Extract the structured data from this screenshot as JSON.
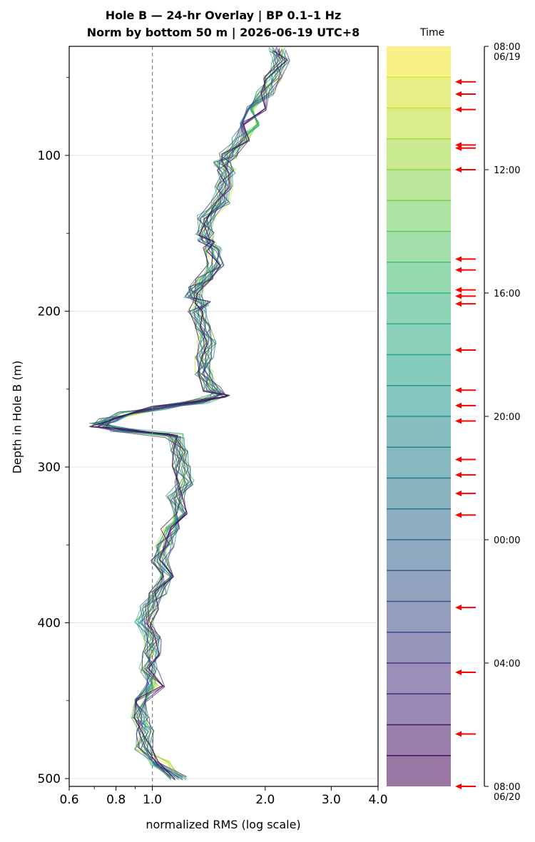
{
  "chart_data": {
    "type": "line",
    "title": "Hole B — 24-hr Overlay  |  BP 0.1–1 Hz",
    "subtitle": "Norm by bottom 50 m  |  2026-06-19 UTC+8",
    "xlabel": "normalized RMS  (log scale)",
    "ylabel": "Depth in Hole B (m)",
    "x_scale": "log",
    "xlim": [
      0.6,
      4.0
    ],
    "ylim": [
      505,
      30
    ],
    "x_ticks": [
      "0.6",
      "0.8",
      "1.0",
      "2.0",
      "3.0",
      "4.0"
    ],
    "y_ticks": [
      "100",
      "200",
      "300",
      "400",
      "500"
    ],
    "reference_line": {
      "x": 1.0,
      "style": "dashed",
      "color": "#808080"
    },
    "grid": "horizontal",
    "colormap": "viridis",
    "colorbar": {
      "label": "Time",
      "ticks": [
        {
          "label": "08:00",
          "sub": "06/19",
          "hours": 0
        },
        {
          "label": "12:00",
          "sub": "",
          "hours": 4
        },
        {
          "label": "16:00",
          "sub": "",
          "hours": 8
        },
        {
          "label": "20:00",
          "sub": "",
          "hours": 12
        },
        {
          "label": "00:00",
          "sub": "",
          "hours": 16
        },
        {
          "label": "04:00",
          "sub": "",
          "hours": 20
        },
        {
          "label": "08:00",
          "sub": "06/20",
          "hours": 24
        }
      ],
      "segments": 24,
      "arrow_hours": [
        1.15,
        1.55,
        2.05,
        3.2,
        3.3,
        4.0,
        6.9,
        7.25,
        7.9,
        8.1,
        8.35,
        9.85,
        11.15,
        11.65,
        12.15,
        13.4,
        13.9,
        14.5,
        15.2,
        18.2,
        20.3,
        22.3,
        24.0
      ]
    },
    "profile": {
      "depth": [
        32,
        40,
        50,
        60,
        70,
        80,
        90,
        100,
        105,
        110,
        120,
        130,
        140,
        150,
        155,
        160,
        170,
        180,
        185,
        190,
        195,
        200,
        210,
        220,
        230,
        240,
        250,
        254,
        258,
        262,
        266,
        270,
        273,
        276,
        280,
        290,
        300,
        310,
        320,
        330,
        340,
        350,
        360,
        370,
        380,
        390,
        400,
        410,
        420,
        430,
        440,
        450,
        460,
        470,
        480,
        490,
        500
      ],
      "rms": [
        2.15,
        2.2,
        2.1,
        2.0,
        1.9,
        1.82,
        1.72,
        1.6,
        1.55,
        1.58,
        1.55,
        1.53,
        1.4,
        1.38,
        1.4,
        1.45,
        1.48,
        1.38,
        1.3,
        1.29,
        1.35,
        1.32,
        1.36,
        1.4,
        1.38,
        1.37,
        1.45,
        1.52,
        1.35,
        1.05,
        0.85,
        0.76,
        0.72,
        0.82,
        1.15,
        1.18,
        1.2,
        1.22,
        1.15,
        1.18,
        1.12,
        1.08,
        1.05,
        1.08,
        1.04,
        0.98,
        0.95,
        1.0,
        1.0,
        0.98,
        1.02,
        0.92,
        0.93,
        0.96,
        0.95,
        1.05,
        1.18
      ]
    },
    "series_count": 23
  }
}
